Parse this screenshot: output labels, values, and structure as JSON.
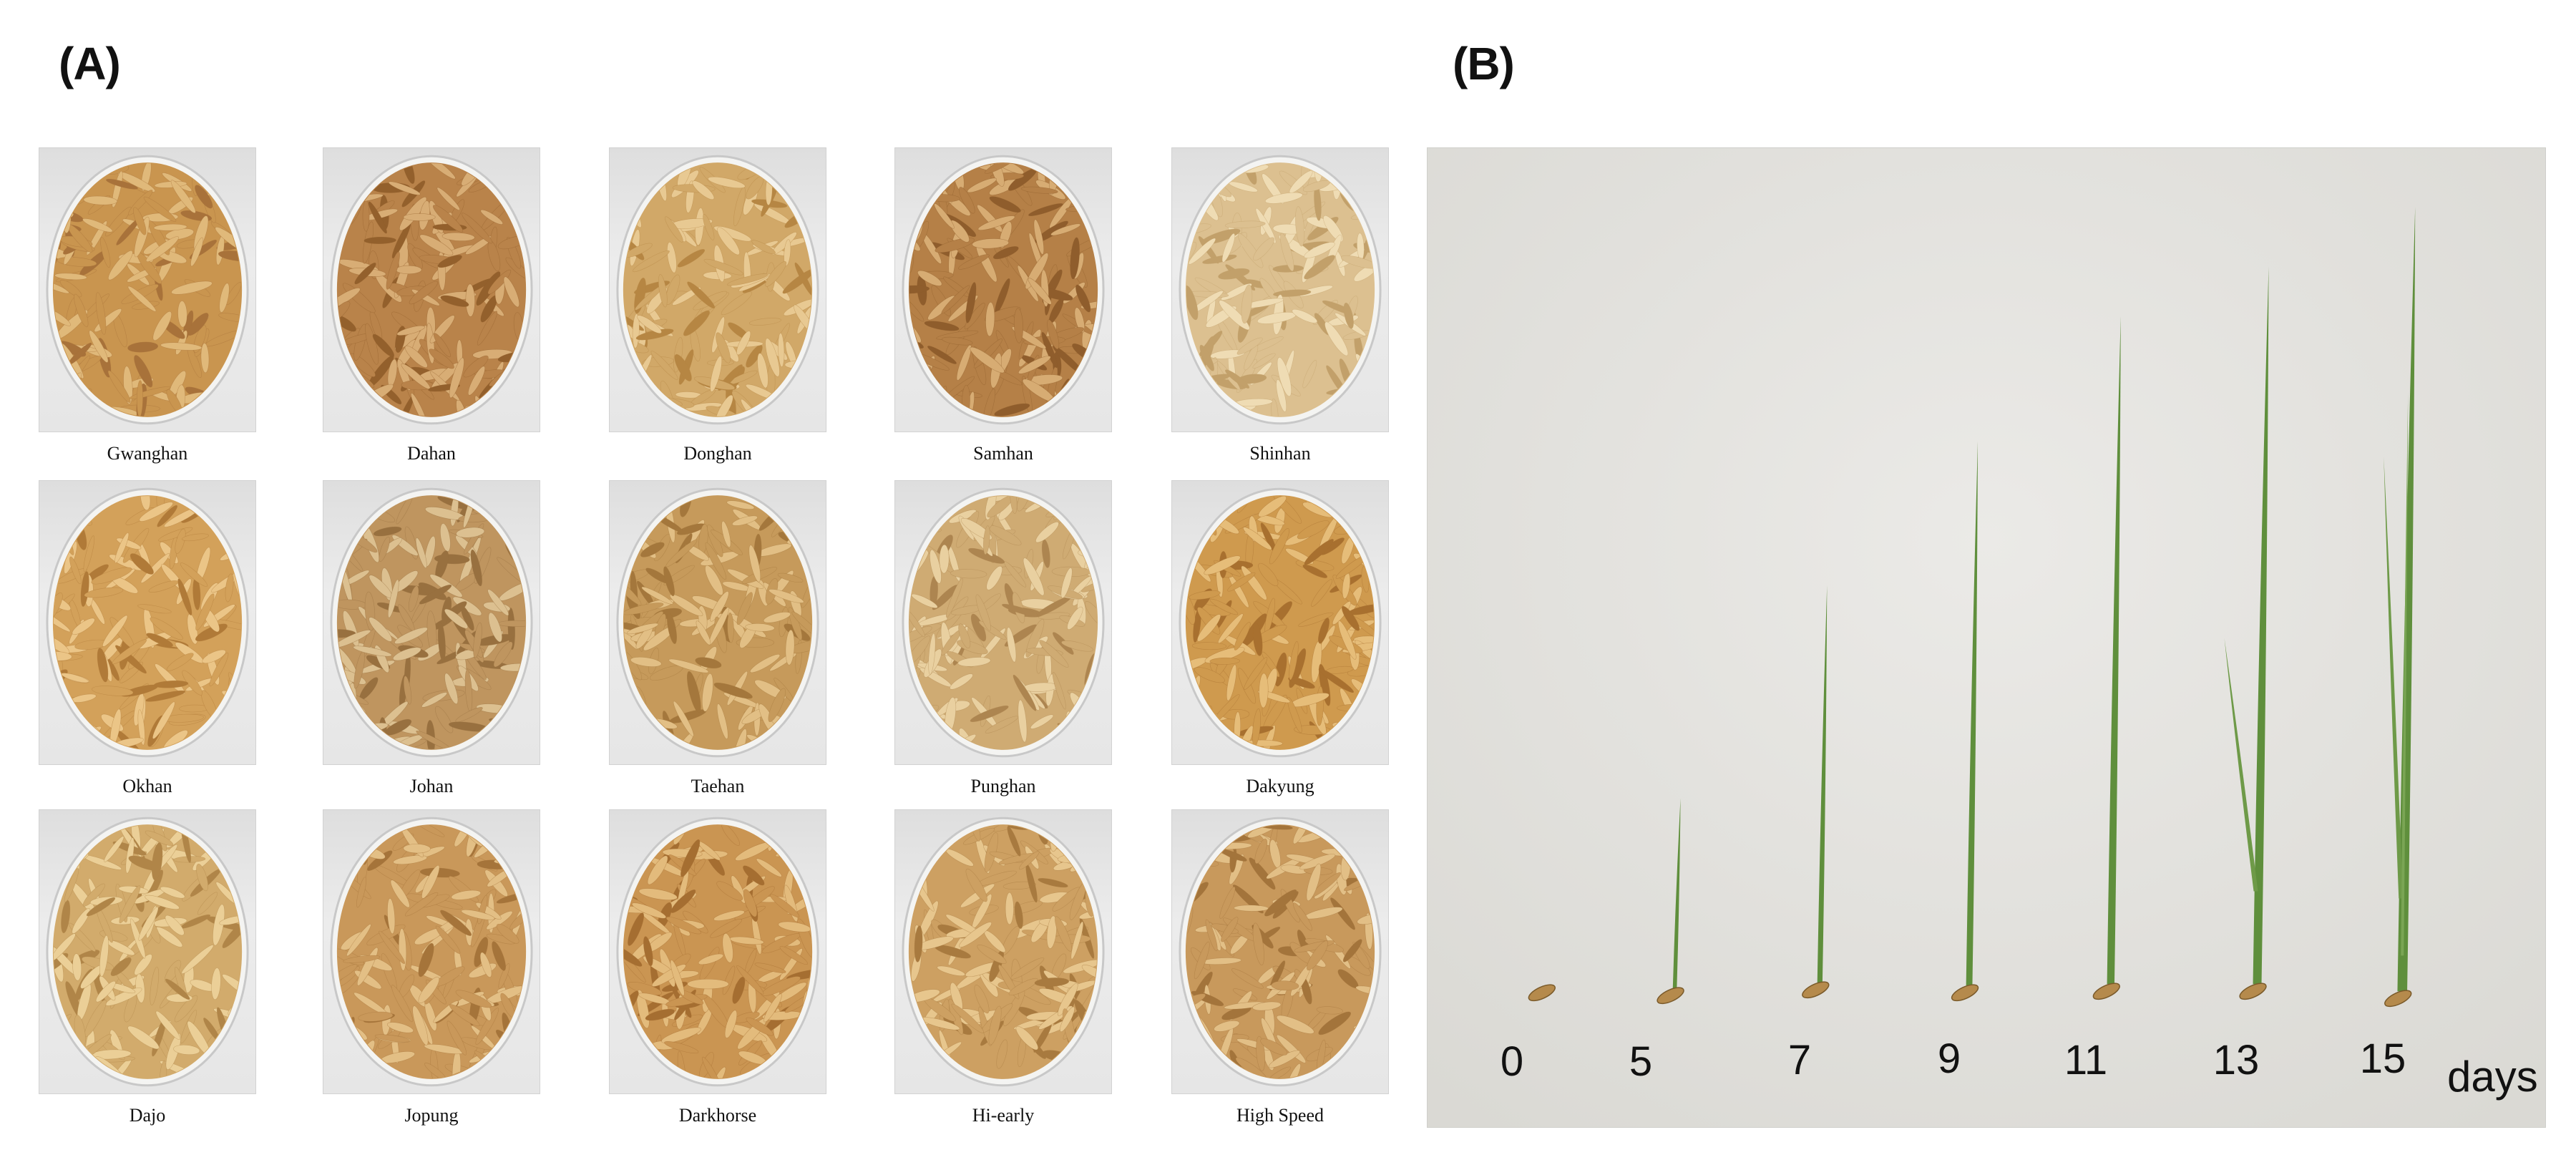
{
  "panel_a": {
    "label": "(A)",
    "varieties": [
      "Gwanghan",
      "Dahan",
      "Donghan",
      "Samhan",
      "Shinhan",
      "Okhan",
      "Johan",
      "Taehan",
      "Punghan",
      "Dakyung",
      "Dajo",
      "Jopung",
      "Darkhorse",
      "Hi-early",
      "High Speed"
    ]
  },
  "panel_b": {
    "label": "(B)",
    "days": [
      "0",
      "5",
      "7",
      "9",
      "11",
      "13",
      "15"
    ],
    "unit": "days"
  }
}
